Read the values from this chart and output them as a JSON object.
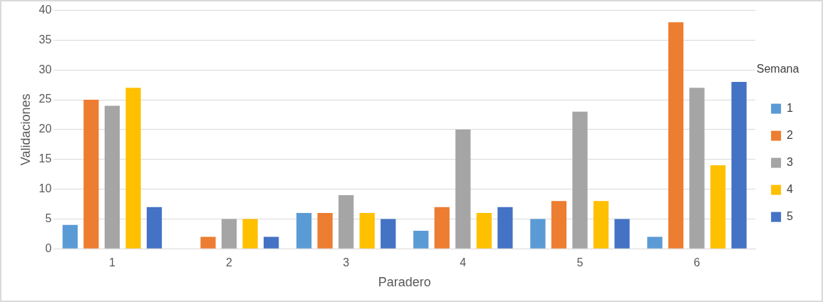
{
  "chart_data": {
    "type": "bar",
    "xlabel": "Paradero",
    "ylabel": "Validaciones",
    "legend_title": "Semana",
    "categories": [
      "1",
      "2",
      "3",
      "4",
      "5",
      "6"
    ],
    "series": [
      {
        "name": "1",
        "color": "#5b9bd5",
        "values": [
          4,
          0,
          6,
          3,
          5,
          2
        ]
      },
      {
        "name": "2",
        "color": "#ed7d31",
        "values": [
          25,
          2,
          6,
          7,
          8,
          38
        ]
      },
      {
        "name": "3",
        "color": "#a5a5a5",
        "values": [
          24,
          5,
          9,
          20,
          23,
          27
        ]
      },
      {
        "name": "4",
        "color": "#ffc000",
        "values": [
          27,
          5,
          6,
          6,
          8,
          14
        ]
      },
      {
        "name": "5",
        "color": "#4472c4",
        "values": [
          7,
          2,
          5,
          7,
          5,
          28
        ]
      }
    ],
    "ylim": [
      0,
      40
    ],
    "yticks": [
      0,
      5,
      10,
      15,
      20,
      25,
      30,
      35,
      40
    ],
    "grid": "y",
    "legend": "right"
  }
}
